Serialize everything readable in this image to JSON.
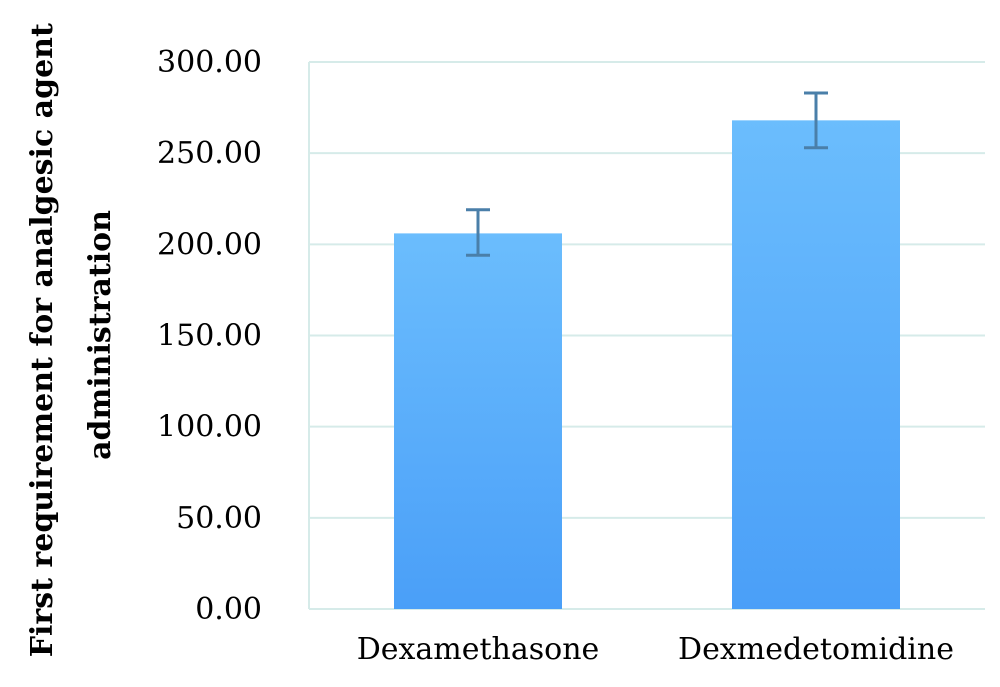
{
  "chart_data": {
    "type": "bar",
    "categories": [
      "Dexamethasone",
      "Dexmedetomidine"
    ],
    "values": [
      206,
      268
    ],
    "error_bars": [
      {
        "low": 194,
        "high": 219
      },
      {
        "low": 253,
        "high": 283
      }
    ],
    "ylabel_lines": [
      "First requirement for analgesic agent",
      "administration"
    ],
    "xlabel": "",
    "title": "",
    "ylim": [
      0,
      300
    ],
    "ytick_values": [
      0,
      50,
      100,
      150,
      200,
      250,
      300
    ],
    "ytick_labels": [
      "0.00",
      "50.00",
      "100.00",
      "150.00",
      "200.00",
      "250.00",
      "300.00"
    ],
    "grid": true,
    "legend": "none",
    "colors": {
      "bar_top": "#6bbdfd",
      "bar_bottom": "#4a9ff8",
      "grid": "#d6ebe9",
      "error_bar": "#4a7fa9"
    }
  }
}
